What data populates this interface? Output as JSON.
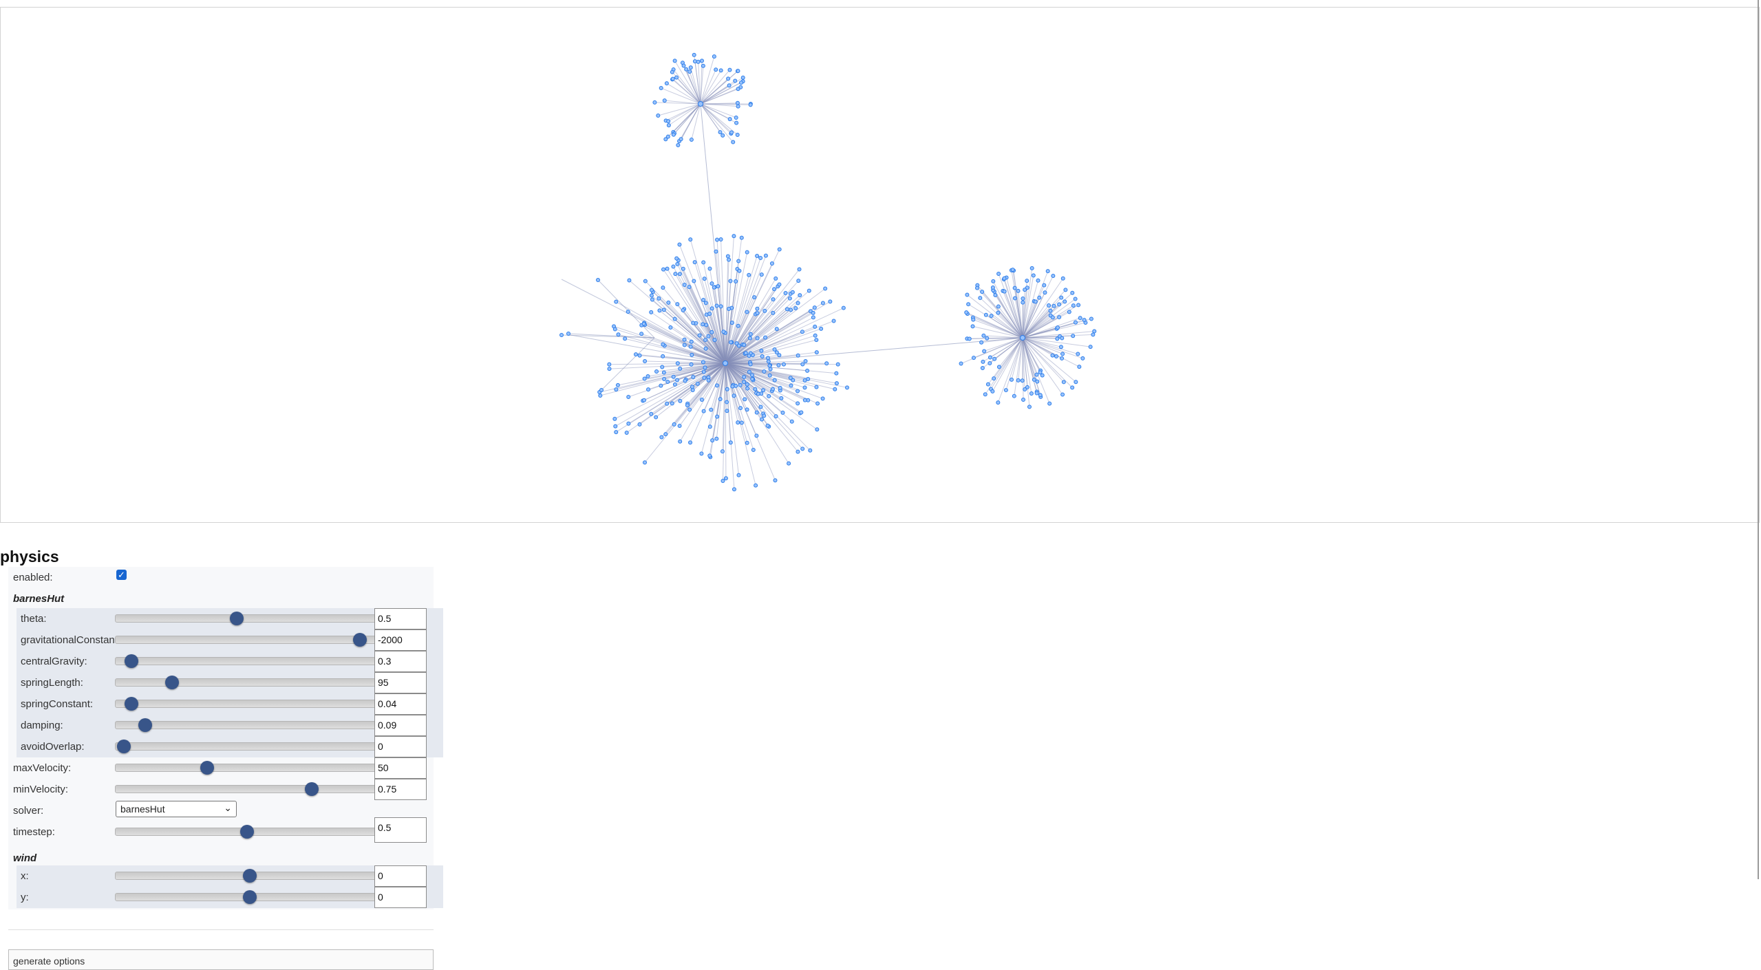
{
  "network": {
    "colors": {
      "node_fill": "#97c2fc",
      "node_border": "#2b7ce9",
      "edge": "#848fb8"
    }
  },
  "configure": {
    "header": "physics",
    "enabled_label": "enabled:",
    "enabled": true,
    "barnesHut_title": "barnesHut",
    "barnesHut": [
      {
        "label": "theta:",
        "value": "0.5",
        "fraction": 0.45
      },
      {
        "label": "gravitationalConstant:",
        "value": "-2000",
        "fraction": 0.91
      },
      {
        "label": "centralGravity:",
        "value": "0.3",
        "fraction": 0.06
      },
      {
        "label": "springLength:",
        "value": "95",
        "fraction": 0.21
      },
      {
        "label": "springConstant:",
        "value": "0.04",
        "fraction": 0.06
      },
      {
        "label": "damping:",
        "value": "0.09",
        "fraction": 0.11
      },
      {
        "label": "avoidOverlap:",
        "value": "0",
        "fraction": 0.03
      }
    ],
    "maxVelocity": {
      "label": "maxVelocity:",
      "value": "50",
      "fraction": 0.34
    },
    "minVelocity": {
      "label": "minVelocity:",
      "value": "0.75",
      "fraction": 0.73
    },
    "solver": {
      "label": "solver:",
      "value": "barnesHut"
    },
    "timestep": {
      "label": "timestep:",
      "value": "0.5",
      "fraction": 0.49
    },
    "wind_title": "wind",
    "wind": [
      {
        "label": "x:",
        "value": "0",
        "fraction": 0.5
      },
      {
        "label": "y:",
        "value": "0",
        "fraction": 0.5
      }
    ],
    "generate_button": "generate options"
  }
}
